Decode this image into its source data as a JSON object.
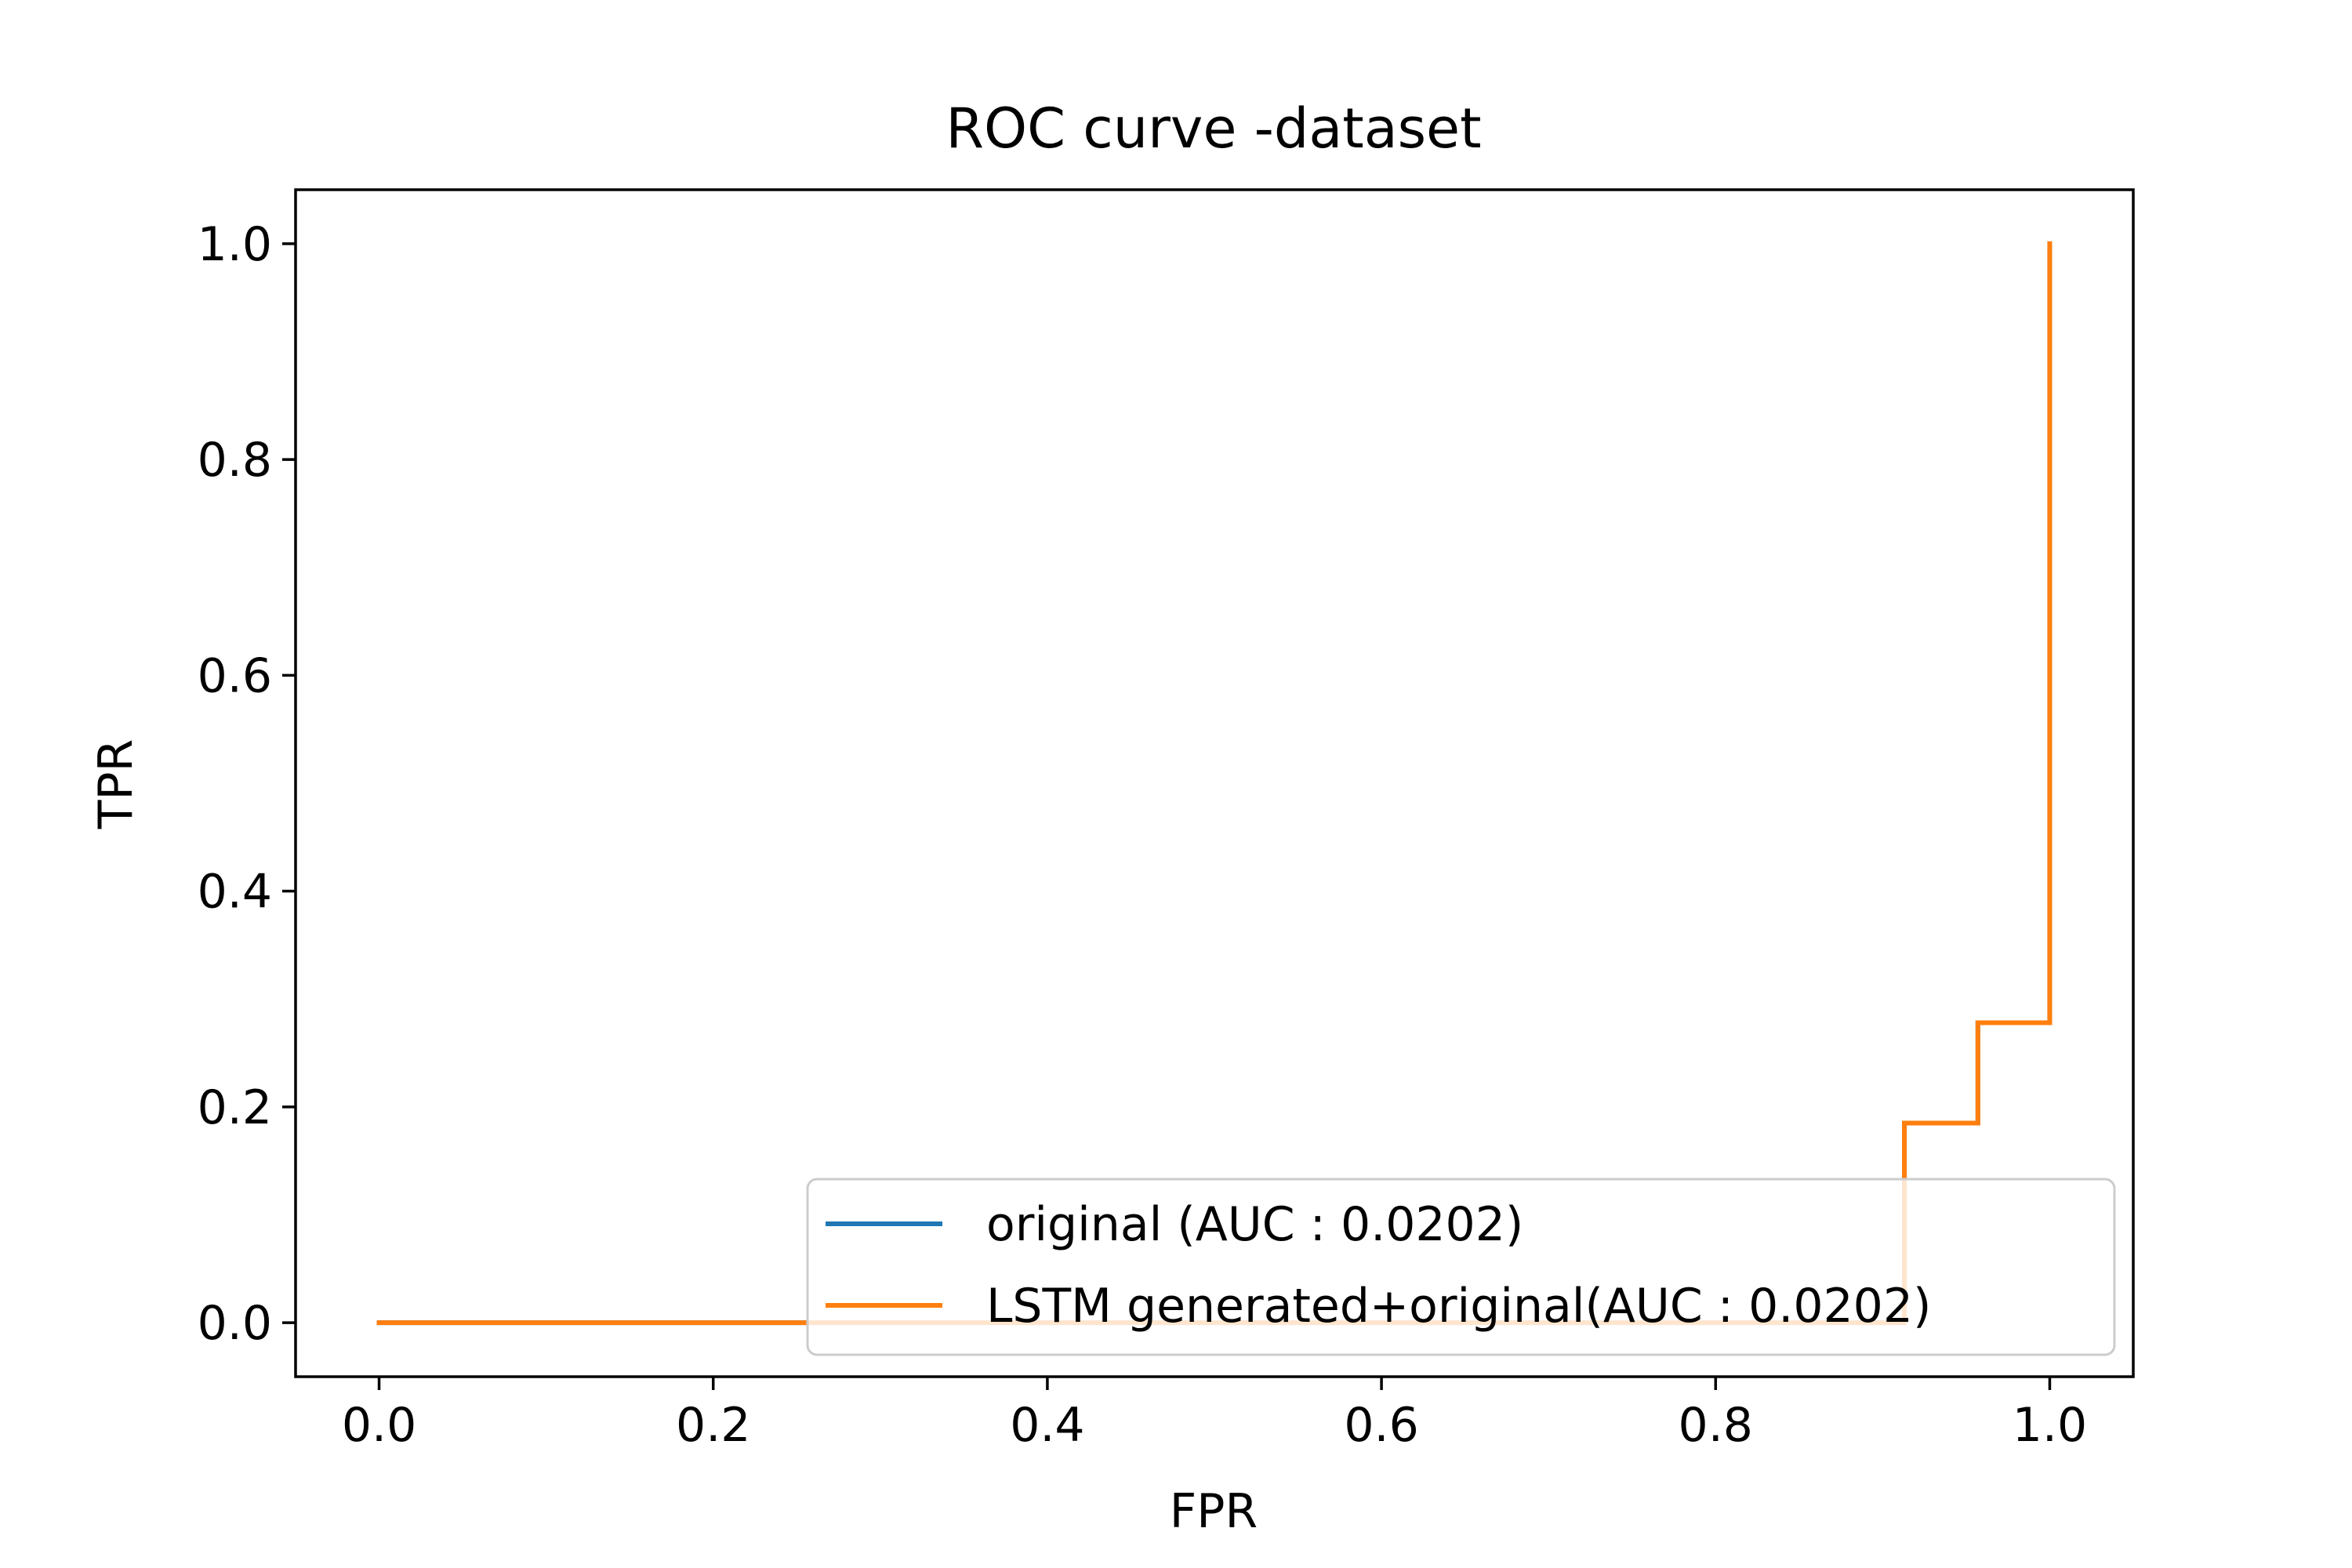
{
  "chart_data": {
    "type": "line",
    "title": "ROC curve -dataset",
    "xlabel": "FPR",
    "ylabel": "TPR",
    "xlim": [
      -0.05,
      1.05
    ],
    "ylim": [
      -0.05,
      1.05
    ],
    "xticks": [
      0.0,
      0.2,
      0.4,
      0.6,
      0.8,
      1.0
    ],
    "xtick_labels": [
      "0.0",
      "0.2",
      "0.4",
      "0.6",
      "0.8",
      "1.0"
    ],
    "yticks": [
      0.0,
      0.2,
      0.4,
      0.6,
      0.8,
      1.0
    ],
    "ytick_labels": [
      "0.0",
      "0.2",
      "0.4",
      "0.6",
      "0.8",
      "1.0"
    ],
    "grid": false,
    "legend_position": "lower-right",
    "series": [
      {
        "name": "original (AUC : 0.0202)",
        "color": "#1f77b4",
        "x": [
          0.0,
          0.913,
          0.913,
          0.957,
          0.957,
          1.0,
          1.0
        ],
        "y": [
          0.0,
          0.0,
          0.185,
          0.185,
          0.278,
          0.278,
          1.0
        ]
      },
      {
        "name": "LSTM generated+original(AUC : 0.0202)",
        "color": "#ff7f0e",
        "x": [
          0.0,
          0.913,
          0.913,
          0.957,
          0.957,
          1.0,
          1.0
        ],
        "y": [
          0.0,
          0.0,
          0.185,
          0.185,
          0.278,
          0.278,
          1.0
        ]
      }
    ]
  }
}
